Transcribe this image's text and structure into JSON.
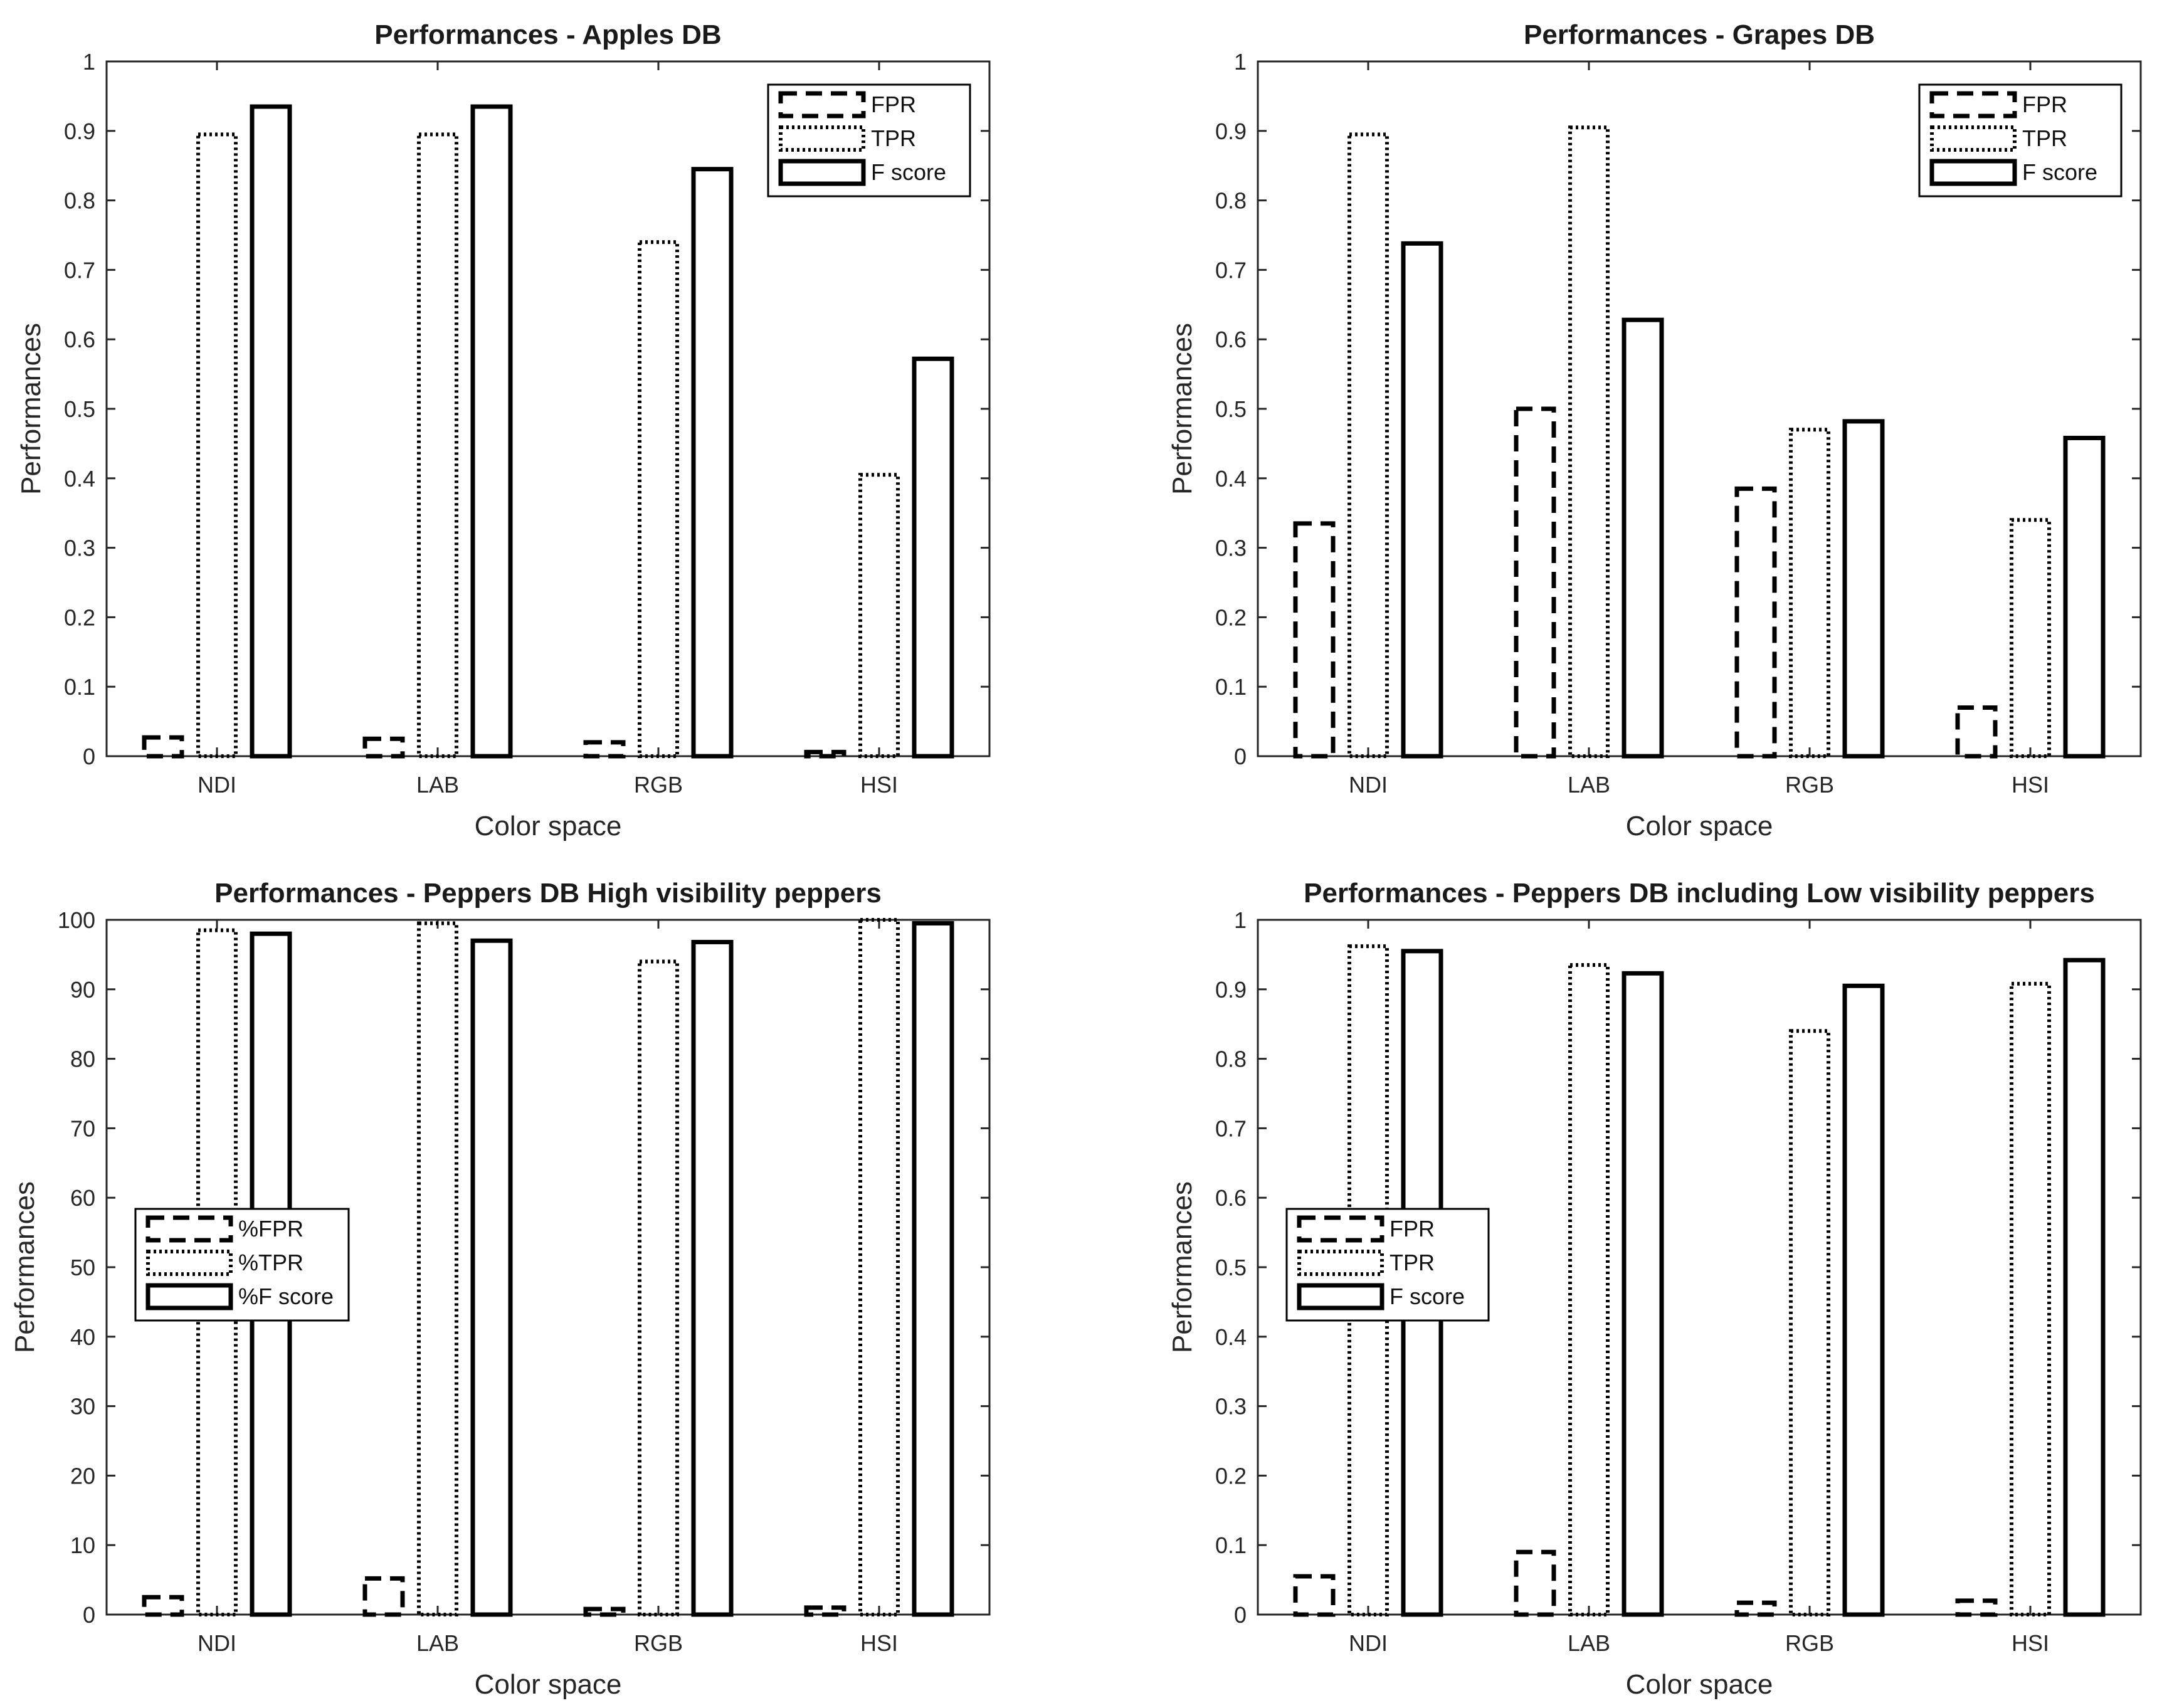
{
  "chart_data": [
    {
      "type": "bar",
      "title": "Performances - Apples DB",
      "xlabel": "Color space",
      "ylabel": "Performances",
      "categories": [
        "NDI",
        "LAB",
        "RGB",
        "HSI"
      ],
      "ylim": [
        0,
        1
      ],
      "yticks": [
        "0",
        "0.1",
        "0.2",
        "0.3",
        "0.4",
        "0.5",
        "0.6",
        "0.7",
        "0.8",
        "0.9",
        "1"
      ],
      "legend_position": "top-right",
      "series": [
        {
          "name": "FPR",
          "style": "dashed",
          "values": [
            0.027,
            0.025,
            0.02,
            0.006
          ]
        },
        {
          "name": "TPR",
          "style": "dotted",
          "values": [
            0.895,
            0.895,
            0.74,
            0.405
          ]
        },
        {
          "name": "F score",
          "style": "solid",
          "values": [
            0.935,
            0.935,
            0.845,
            0.572
          ]
        }
      ]
    },
    {
      "type": "bar",
      "title": "Performances - Grapes DB",
      "xlabel": "Color space",
      "ylabel": "Performances",
      "categories": [
        "NDI",
        "LAB",
        "RGB",
        "HSI"
      ],
      "ylim": [
        0,
        1
      ],
      "yticks": [
        "0",
        "0.1",
        "0.2",
        "0.3",
        "0.4",
        "0.5",
        "0.6",
        "0.7",
        "0.8",
        "0.9",
        "1"
      ],
      "legend_position": "top-right",
      "series": [
        {
          "name": "FPR",
          "style": "dashed",
          "values": [
            0.335,
            0.5,
            0.385,
            0.07
          ]
        },
        {
          "name": "TPR",
          "style": "dotted",
          "values": [
            0.895,
            0.905,
            0.47,
            0.34
          ]
        },
        {
          "name": "F score",
          "style": "solid",
          "values": [
            0.738,
            0.628,
            0.482,
            0.458
          ]
        }
      ]
    },
    {
      "type": "bar",
      "title": "Performances - Peppers DB High visibility peppers",
      "xlabel": "Color space",
      "ylabel": "Performances",
      "categories": [
        "NDI",
        "LAB",
        "RGB",
        "HSI"
      ],
      "ylim": [
        0,
        100
      ],
      "yticks": [
        "0",
        "10",
        "20",
        "30",
        "40",
        "50",
        "60",
        "70",
        "80",
        "90",
        "100"
      ],
      "legend_position": "middle-left",
      "series": [
        {
          "name": "%FPR",
          "style": "dashed",
          "values": [
            2.5,
            5.2,
            0.8,
            1.0
          ]
        },
        {
          "name": "%TPR",
          "style": "dotted",
          "values": [
            98.5,
            99.5,
            94.0,
            100.0
          ]
        },
        {
          "name": "%F score",
          "style": "solid",
          "values": [
            98.0,
            97.0,
            96.8,
            99.5
          ]
        }
      ]
    },
    {
      "type": "bar",
      "title": "Performances - Peppers DB including Low visibility peppers",
      "xlabel": "Color space",
      "ylabel": "Performances",
      "categories": [
        "NDI",
        "LAB",
        "RGB",
        "HSI"
      ],
      "ylim": [
        0,
        1
      ],
      "yticks": [
        "0",
        "0.1",
        "0.2",
        "0.3",
        "0.4",
        "0.5",
        "0.6",
        "0.7",
        "0.8",
        "0.9",
        "1"
      ],
      "legend_position": "middle-left",
      "series": [
        {
          "name": "FPR",
          "style": "dashed",
          "values": [
            0.055,
            0.09,
            0.017,
            0.02
          ]
        },
        {
          "name": "TPR",
          "style": "dotted",
          "values": [
            0.962,
            0.935,
            0.84,
            0.908
          ]
        },
        {
          "name": "F score",
          "style": "solid",
          "values": [
            0.955,
            0.923,
            0.905,
            0.942
          ]
        }
      ]
    }
  ]
}
